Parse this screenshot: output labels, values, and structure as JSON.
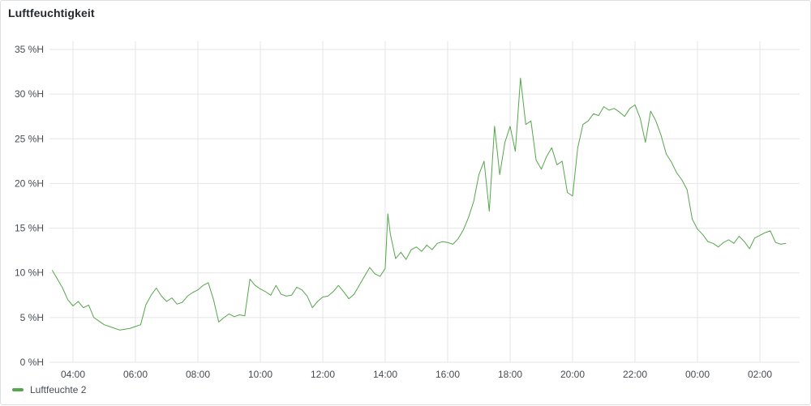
{
  "panel": {
    "title": "Luftfeuchtigkeit"
  },
  "chart_data": {
    "type": "line",
    "title": "Luftfeuchtigkeit",
    "xlabel": "",
    "ylabel": "",
    "y_unit": "%H",
    "ylim": [
      0,
      35
    ],
    "y_ticks": [
      "0 %H",
      "5 %H",
      "10 %H",
      "15 %H",
      "20 %H",
      "25 %H",
      "30 %H",
      "35 %H"
    ],
    "x_ticks": [
      "04:00",
      "06:00",
      "08:00",
      "10:00",
      "12:00",
      "14:00",
      "16:00",
      "18:00",
      "20:00",
      "22:00",
      "00:00",
      "02:00"
    ],
    "grid": true,
    "legend_position": "bottom-left",
    "series": [
      {
        "name": "Luftfeuchte 2",
        "color": "#56a64b",
        "points": [
          [
            "03:20",
            10.3
          ],
          [
            "03:30",
            9.3
          ],
          [
            "03:40",
            8.3
          ],
          [
            "03:50",
            7.0
          ],
          [
            "04:00",
            6.3
          ],
          [
            "04:10",
            6.8
          ],
          [
            "04:20",
            6.1
          ],
          [
            "04:30",
            6.4
          ],
          [
            "04:40",
            5.0
          ],
          [
            "04:50",
            4.6
          ],
          [
            "05:00",
            4.2
          ],
          [
            "05:10",
            4.0
          ],
          [
            "05:20",
            3.8
          ],
          [
            "05:30",
            3.6
          ],
          [
            "05:40",
            3.7
          ],
          [
            "05:50",
            3.8
          ],
          [
            "06:00",
            4.0
          ],
          [
            "06:10",
            4.2
          ],
          [
            "06:20",
            6.4
          ],
          [
            "06:30",
            7.5
          ],
          [
            "06:40",
            8.3
          ],
          [
            "06:50",
            7.4
          ],
          [
            "07:00",
            6.8
          ],
          [
            "07:10",
            7.2
          ],
          [
            "07:20",
            6.5
          ],
          [
            "07:30",
            6.7
          ],
          [
            "07:40",
            7.4
          ],
          [
            "07:50",
            7.8
          ],
          [
            "08:00",
            8.1
          ],
          [
            "08:10",
            8.6
          ],
          [
            "08:20",
            8.9
          ],
          [
            "08:30",
            7.0
          ],
          [
            "08:40",
            4.5
          ],
          [
            "08:50",
            5.0
          ],
          [
            "09:00",
            5.4
          ],
          [
            "09:10",
            5.1
          ],
          [
            "09:20",
            5.3
          ],
          [
            "09:30",
            5.2
          ],
          [
            "09:40",
            9.3
          ],
          [
            "09:50",
            8.6
          ],
          [
            "10:00",
            8.2
          ],
          [
            "10:10",
            7.9
          ],
          [
            "10:20",
            7.5
          ],
          [
            "10:30",
            8.6
          ],
          [
            "10:40",
            7.6
          ],
          [
            "10:50",
            7.4
          ],
          [
            "11:00",
            7.5
          ],
          [
            "11:10",
            8.4
          ],
          [
            "11:20",
            8.1
          ],
          [
            "11:30",
            7.4
          ],
          [
            "11:40",
            6.1
          ],
          [
            "11:50",
            6.8
          ],
          [
            "12:00",
            7.3
          ],
          [
            "12:10",
            7.4
          ],
          [
            "12:20",
            7.9
          ],
          [
            "12:30",
            8.6
          ],
          [
            "12:40",
            7.9
          ],
          [
            "12:50",
            7.1
          ],
          [
            "13:00",
            7.6
          ],
          [
            "13:10",
            8.6
          ],
          [
            "13:20",
            9.6
          ],
          [
            "13:30",
            10.6
          ],
          [
            "13:40",
            9.9
          ],
          [
            "13:50",
            9.6
          ],
          [
            "14:00",
            10.5
          ],
          [
            "14:05",
            16.6
          ],
          [
            "14:10",
            14.3
          ],
          [
            "14:20",
            11.6
          ],
          [
            "14:30",
            12.3
          ],
          [
            "14:40",
            11.5
          ],
          [
            "14:50",
            12.6
          ],
          [
            "15:00",
            12.9
          ],
          [
            "15:10",
            12.4
          ],
          [
            "15:20",
            13.1
          ],
          [
            "15:30",
            12.6
          ],
          [
            "15:40",
            13.3
          ],
          [
            "15:50",
            13.5
          ],
          [
            "16:00",
            13.4
          ],
          [
            "16:10",
            13.2
          ],
          [
            "16:20",
            13.8
          ],
          [
            "16:30",
            14.8
          ],
          [
            "16:40",
            16.2
          ],
          [
            "16:50",
            18.0
          ],
          [
            "17:00",
            21.0
          ],
          [
            "17:10",
            22.5
          ],
          [
            "17:20",
            16.9
          ],
          [
            "17:30",
            26.4
          ],
          [
            "17:40",
            21.0
          ],
          [
            "17:50",
            24.6
          ],
          [
            "18:00",
            26.4
          ],
          [
            "18:10",
            23.6
          ],
          [
            "18:20",
            31.8
          ],
          [
            "18:30",
            26.6
          ],
          [
            "18:40",
            27.0
          ],
          [
            "18:50",
            22.6
          ],
          [
            "19:00",
            21.6
          ],
          [
            "19:10",
            23.0
          ],
          [
            "19:20",
            24.0
          ],
          [
            "19:30",
            22.1
          ],
          [
            "19:40",
            22.5
          ],
          [
            "19:50",
            19.0
          ],
          [
            "20:00",
            18.6
          ],
          [
            "20:10",
            24.0
          ],
          [
            "20:20",
            26.6
          ],
          [
            "20:30",
            27.0
          ],
          [
            "20:40",
            27.8
          ],
          [
            "20:50",
            27.6
          ],
          [
            "21:00",
            28.6
          ],
          [
            "21:10",
            28.2
          ],
          [
            "21:20",
            28.4
          ],
          [
            "21:30",
            28.0
          ],
          [
            "21:40",
            27.5
          ],
          [
            "21:50",
            28.4
          ],
          [
            "22:00",
            28.8
          ],
          [
            "22:10",
            27.3
          ],
          [
            "22:20",
            24.6
          ],
          [
            "22:30",
            28.1
          ],
          [
            "22:40",
            27.0
          ],
          [
            "22:50",
            25.4
          ],
          [
            "23:00",
            23.3
          ],
          [
            "23:10",
            22.4
          ],
          [
            "23:20",
            21.2
          ],
          [
            "23:30",
            20.4
          ],
          [
            "23:40",
            19.3
          ],
          [
            "23:50",
            16.0
          ],
          [
            "00:00",
            14.9
          ],
          [
            "00:10",
            14.3
          ],
          [
            "00:20",
            13.5
          ],
          [
            "00:30",
            13.3
          ],
          [
            "00:40",
            12.9
          ],
          [
            "00:50",
            13.4
          ],
          [
            "01:00",
            13.7
          ],
          [
            "01:10",
            13.3
          ],
          [
            "01:20",
            14.1
          ],
          [
            "01:30",
            13.5
          ],
          [
            "01:40",
            12.7
          ],
          [
            "01:50",
            13.9
          ],
          [
            "02:00",
            14.2
          ],
          [
            "02:10",
            14.5
          ],
          [
            "02:20",
            14.7
          ],
          [
            "02:30",
            13.4
          ],
          [
            "02:40",
            13.2
          ],
          [
            "02:50",
            13.3
          ]
        ]
      }
    ]
  }
}
